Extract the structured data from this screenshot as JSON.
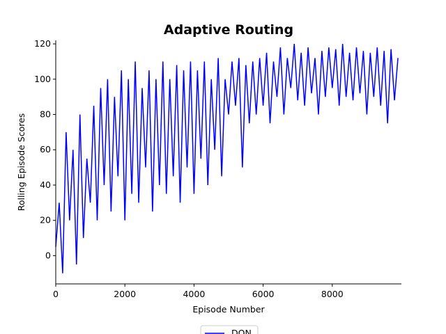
{
  "chart_data": {
    "type": "line",
    "title": "Adaptive Routing",
    "xlabel": "Episode Number",
    "ylabel": "Rolling Episode Scores",
    "x": [
      0,
      100,
      200,
      300,
      400,
      500,
      600,
      700,
      800,
      900,
      1000,
      1100,
      1200,
      1300,
      1400,
      1500,
      1600,
      1700,
      1800,
      1900,
      2000,
      2100,
      2200,
      2300,
      2400,
      2500,
      2600,
      2700,
      2800,
      2900,
      3000,
      3100,
      3200,
      3300,
      3400,
      3500,
      3600,
      3700,
      3800,
      3900,
      4000,
      4100,
      4200,
      4300,
      4400,
      4500,
      4600,
      4700,
      4800,
      4900,
      5000,
      5100,
      5200,
      5300,
      5400,
      5500,
      5600,
      5700,
      5800,
      5900,
      6000,
      6100,
      6200,
      6300,
      6400,
      6500,
      6600,
      6700,
      6800,
      6900,
      7000,
      7100,
      7200,
      7300,
      7400,
      7500,
      7600,
      7700,
      7800,
      7900,
      8000,
      8100,
      8200,
      8300,
      8400,
      8500,
      8600,
      8700,
      8800,
      8900,
      9000,
      9100,
      9200,
      9300,
      9400,
      9500,
      9600,
      9700,
      9800,
      9900
    ],
    "series": [
      {
        "name": "DQN",
        "color": "#0000ff",
        "values": [
          5,
          30,
          -10,
          70,
          20,
          60,
          -5,
          80,
          10,
          55,
          30,
          85,
          20,
          95,
          40,
          100,
          25,
          90,
          45,
          105,
          20,
          100,
          35,
          110,
          30,
          95,
          50,
          105,
          25,
          100,
          40,
          110,
          35,
          100,
          45,
          108,
          30,
          105,
          50,
          110,
          35,
          105,
          55,
          110,
          40,
          100,
          60,
          112,
          45,
          100,
          80,
          110,
          85,
          112,
          50,
          108,
          75,
          110,
          80,
          112,
          85,
          115,
          75,
          110,
          90,
          118,
          80,
          112,
          95,
          120,
          88,
          115,
          85,
          118,
          92,
          112,
          80,
          116,
          90,
          118,
          95,
          117,
          85,
          120,
          90,
          115,
          88,
          118,
          92,
          116,
          80,
          115,
          90,
          118,
          85,
          116,
          75,
          117,
          88,
          112
        ]
      }
    ],
    "xlim": [
      0,
      10000
    ],
    "ylim": [
      -16,
      122
    ],
    "xticks": [
      0,
      2000,
      4000,
      6000,
      8000
    ],
    "yticks": [
      0,
      20,
      40,
      60,
      80,
      100,
      120
    ]
  }
}
